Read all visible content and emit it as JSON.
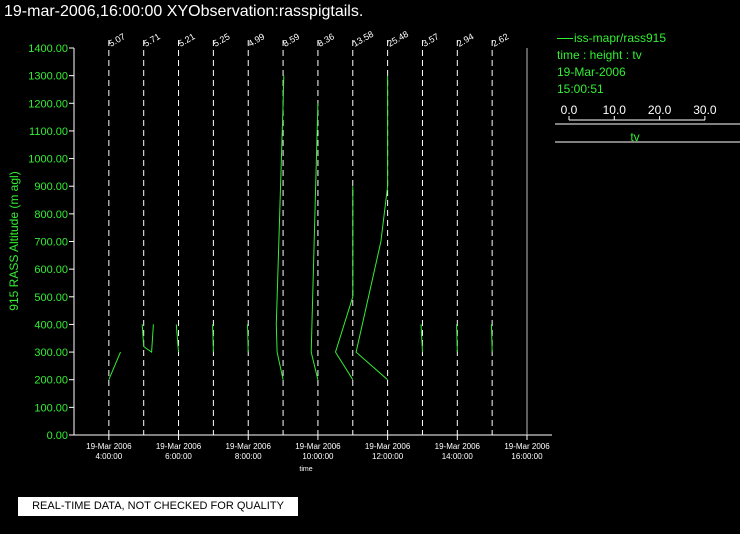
{
  "header": {
    "title": "19-mar-2006,16:00:00  XYObservation:rasspigtails."
  },
  "legend": {
    "series_name": "iss-mapr/rass915",
    "variable": "time : height : tv",
    "date": "19-Mar-2006",
    "time": "15:00:51",
    "scale_ticks": [
      "0.0",
      "10.0",
      "20.0",
      "30.0"
    ],
    "scale_label": "tv"
  },
  "notice": "REAL-TIME DATA, NOT CHECKED FOR QUALITY",
  "colors": {
    "trace": "#33ee33",
    "axes": "#ffffff",
    "background": "#000000"
  },
  "chart_data": {
    "type": "line",
    "xlabel": "time",
    "ylabel": "915 RASS Altitude (m agl)",
    "ylim": [
      0,
      1400
    ],
    "xlim": [
      "19-Mar-2006 03:00:00",
      "19-Mar-2006 16:00:00"
    ],
    "y_ticks": [
      "0.00",
      "100.00",
      "200.00",
      "300.00",
      "400.00",
      "500.00",
      "600.00",
      "700.00",
      "800.00",
      "900.00",
      "1000.00",
      "1100.00",
      "1200.00",
      "1300.00",
      "1400.00"
    ],
    "x_ticks": [
      {
        "date": "19-Mar-2006",
        "time": "4:00:00"
      },
      {
        "date": "19-Mar-2006",
        "time": "6:00:00"
      },
      {
        "date": "19-Mar-2006",
        "time": "8:00:00"
      },
      {
        "date": "19-Mar-2006",
        "time": "10:00:00"
      },
      {
        "date": "19-Mar-2006",
        "time": "12:00:00"
      },
      {
        "date": "19-Mar-2006",
        "time": "14:00:00"
      },
      {
        "date": "19-Mar-2006",
        "time": "16:00:00"
      }
    ],
    "profiles": [
      {
        "time": "19-Mar-2006 04:00:00",
        "label": "5.07",
        "points": [
          [
            0,
            200
          ],
          [
            1.55,
            300
          ]
        ]
      },
      {
        "time": "19-Mar-2006 05:00:00",
        "label": "5.71",
        "points": [
          [
            -0.2,
            400
          ],
          [
            0,
            320
          ],
          [
            1.05,
            300
          ],
          [
            1.3,
            400
          ]
        ]
      },
      {
        "time": "19-Mar-2006 06:00:00",
        "label": "5.21",
        "points": [
          [
            -0.3,
            400
          ],
          [
            0,
            300
          ]
        ]
      },
      {
        "time": "19-Mar-2006 07:00:00",
        "label": "5.25",
        "points": [
          [
            -0.1,
            400
          ],
          [
            0,
            300
          ]
        ]
      },
      {
        "time": "19-Mar-2006 08:00:00",
        "label": "4.99",
        "points": [
          [
            -0.1,
            400
          ],
          [
            0,
            300
          ]
        ]
      },
      {
        "time": "19-Mar-2006 09:00:00",
        "label": "8.59",
        "points": [
          [
            0,
            200
          ],
          [
            -0.8,
            300
          ],
          [
            -0.9,
            400
          ],
          [
            0,
            1200
          ],
          [
            0.1,
            1300
          ]
        ]
      },
      {
        "time": "19-Mar-2006 10:00:00",
        "label": "8.36",
        "points": [
          [
            0,
            200
          ],
          [
            -0.9,
            300
          ],
          [
            0,
            1200
          ]
        ]
      },
      {
        "time": "19-Mar-2006 11:00:00",
        "label": "13.58",
        "points": [
          [
            0,
            200
          ],
          [
            -2.3,
            300
          ],
          [
            0,
            500
          ],
          [
            0,
            900
          ]
        ]
      },
      {
        "time": "19-Mar-2006 12:00:00",
        "label": "25.48",
        "points": [
          [
            0,
            200
          ],
          [
            -4.2,
            300
          ],
          [
            -0.9,
            700
          ],
          [
            0,
            900
          ],
          [
            0,
            1300
          ]
        ]
      },
      {
        "time": "19-Mar-2006 13:00:00",
        "label": "3.57",
        "points": [
          [
            -0.2,
            400
          ],
          [
            0,
            300
          ]
        ]
      },
      {
        "time": "19-Mar-2006 14:00:00",
        "label": "2.94",
        "points": [
          [
            -0.1,
            400
          ],
          [
            0,
            300
          ]
        ]
      },
      {
        "time": "19-Mar-2006 15:00:00",
        "label": "2.62",
        "points": [
          [
            -0.1,
            400
          ],
          [
            0,
            300
          ]
        ]
      }
    ]
  }
}
